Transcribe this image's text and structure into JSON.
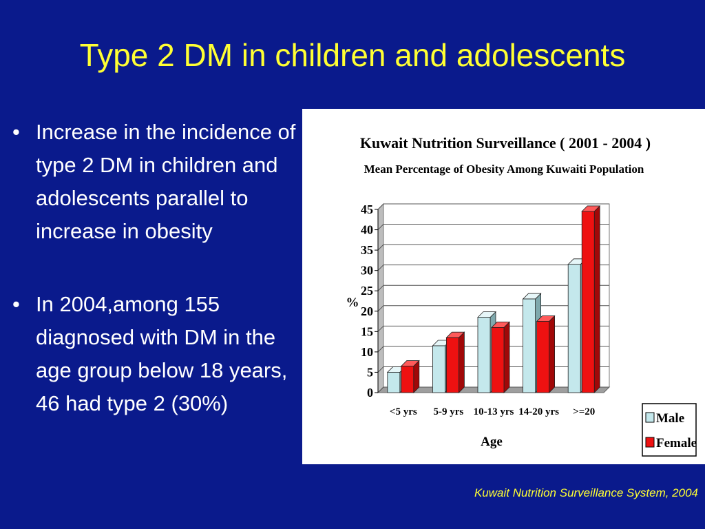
{
  "slide": {
    "title": "Type 2 DM in children and adolescents",
    "bullets": [
      "Increase in the incidence of type 2 DM in children and adolescents parallel to increase in obesity",
      "In 2004,among 155 diagnosed with DM in the age group below 18 years, 46 had type 2   (30%)"
    ],
    "source": "Kuwait Nutrition Surveillance System, 2004"
  },
  "colors": {
    "background": "#0a1a8c",
    "title": "#ffff33",
    "male": "#c4e8ec",
    "female": "#ee1111"
  },
  "chart_data": {
    "type": "bar",
    "title": "Kuwait Nutrition Surveillance ( 2001 - 2004 )",
    "subtitle": "Mean Percentage of Obesity Among Kuwaiti Population",
    "xlabel": "Age",
    "ylabel": "%",
    "categories": [
      "<5 yrs",
      "5-9 yrs",
      "10-13 yrs",
      "14-20 yrs",
      ">=20"
    ],
    "series": [
      {
        "name": "Male",
        "values": [
          5,
          11.5,
          18.5,
          23,
          31.5
        ]
      },
      {
        "name": "Female",
        "values": [
          6.5,
          13.5,
          16,
          17.5,
          44.5
        ]
      }
    ],
    "ylim": [
      0,
      45
    ],
    "yticks": [
      0,
      5,
      10,
      15,
      20,
      25,
      30,
      35,
      40,
      45
    ],
    "grid": true,
    "style": "3d",
    "legend_position": "right"
  }
}
